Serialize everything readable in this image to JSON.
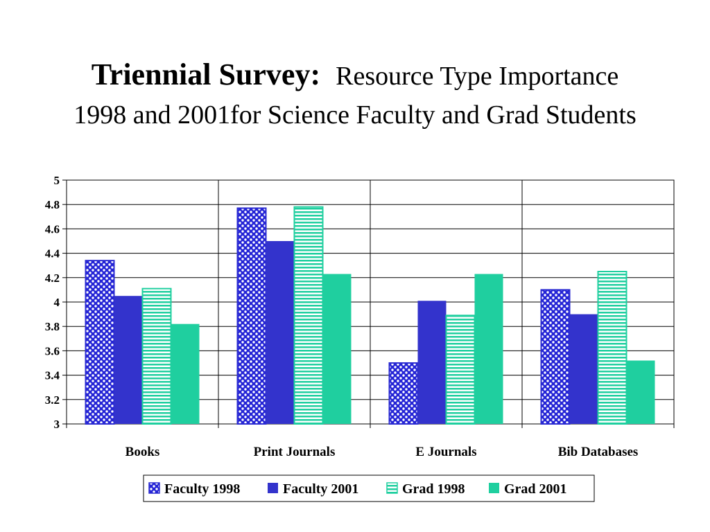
{
  "title": {
    "main": "Triennial Survey:",
    "subtitle": "Resource Type Importance",
    "line2": "1998 and 2001for Science Faculty and Grad Students"
  },
  "chart_data": {
    "type": "bar",
    "categories": [
      "Books",
      "Print Journals",
      "E Journals",
      "Bib Databases"
    ],
    "series": [
      {
        "name": "Faculty 1998",
        "values": [
          4.34,
          4.77,
          3.5,
          4.1
        ],
        "color": "#2b2bd1",
        "pattern": "dots"
      },
      {
        "name": "Faculty 2001",
        "values": [
          4.05,
          4.5,
          4.01,
          3.9
        ],
        "color": "#3333cc",
        "pattern": "solid"
      },
      {
        "name": "Grad 1998",
        "values": [
          4.11,
          4.78,
          3.89,
          4.25
        ],
        "color": "#1fcf9f",
        "pattern": "stripes"
      },
      {
        "name": "Grad 2001",
        "values": [
          3.82,
          4.23,
          4.23,
          3.52
        ],
        "color": "#1fcf9f",
        "pattern": "solid"
      }
    ],
    "yticks": [
      "3",
      "3.2",
      "3.4",
      "3.6",
      "3.8",
      "4",
      "4.2",
      "4.4",
      "4.6",
      "4.8",
      "5"
    ],
    "ylim": [
      3,
      5
    ],
    "grid": true,
    "legend_position": "bottom"
  }
}
